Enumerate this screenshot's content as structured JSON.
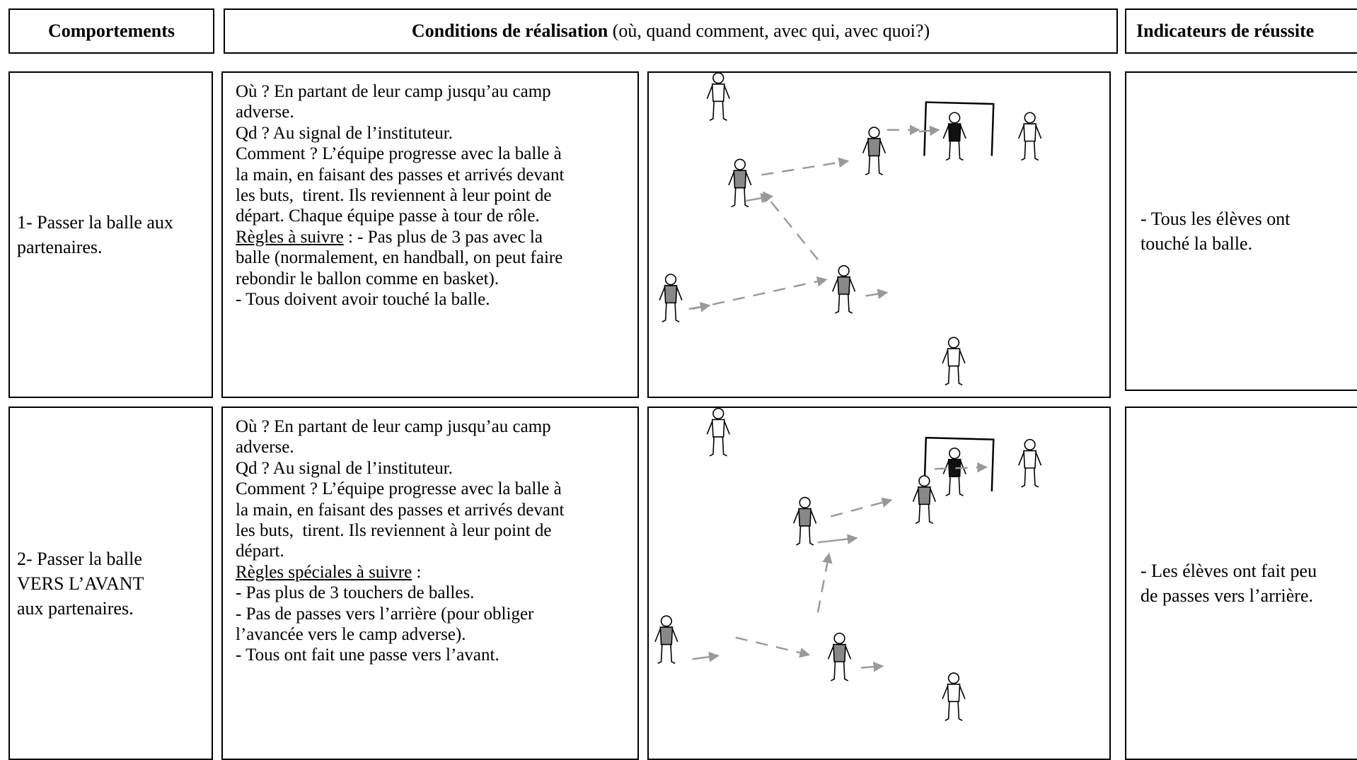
{
  "header": {
    "behaviors": "Comportements",
    "conditions_title": "Conditions de réalisation",
    "conditions_note": " (où, quand comment, avec qui, avec quoi?)",
    "indicators": "Indicateurs de réussite"
  },
  "rows": [
    {
      "behavior": [
        "1- Passer la balle aux",
        "partenaires."
      ],
      "conditions": [
        {
          "text": "Où ? En partant de leur camp jusqu’au camp"
        },
        {
          "text": "adverse."
        },
        {
          "text": "Qd ? Au signal de l’instituteur."
        },
        {
          "text": "Comment ? L’équipe progresse avec la balle à"
        },
        {
          "text": "la main, en faisant des passes et arrivés devant"
        },
        {
          "text": "les buts,  tirent. Ils reviennent à leur point de"
        },
        {
          "text": "départ. Chaque équipe passe à tour de rôle."
        },
        {
          "underlined": "Règles à suivre",
          "text": " : - Pas plus de 3 pas avec la"
        },
        {
          "text": "balle (normalement, en handball, on peut faire"
        },
        {
          "text": "rebondir le ballon comme en basket)."
        },
        {
          "text": "- Tous doivent avoir touché la balle."
        }
      ],
      "indicator": [
        "- Tous les élèves ont",
        "touché la balle."
      ]
    },
    {
      "behavior": [
        "2- Passer la balle",
        "VERS L’AVANT",
        "aux partenaires."
      ],
      "conditions": [
        {
          "text": "Où ? En partant de leur camp jusqu’au camp"
        },
        {
          "text": "adverse."
        },
        {
          "text": "Qd ? Au signal de l’instituteur."
        },
        {
          "text": "Comment ? L’équipe progresse avec la balle à"
        },
        {
          "text": "la main, en faisant des passes et arrivés devant"
        },
        {
          "text": "les buts,  tirent. Ils reviennent à leur point de"
        },
        {
          "text": "départ."
        },
        {
          "underlined": "Règles spéciales à suivre",
          "text": " :"
        },
        {
          "text": "- Pas plus de 3 touchers de balles."
        },
        {
          "text": "- Pas de passes vers l’arrière (pour obliger"
        },
        {
          "text": "l’avancée vers le camp adverse)."
        },
        {
          "text": "- Tous ont fait une passe vers l’avant."
        }
      ],
      "indicator": [
        "- Les élèves ont fait peu",
        "de passes vers l’arrière."
      ]
    }
  ]
}
